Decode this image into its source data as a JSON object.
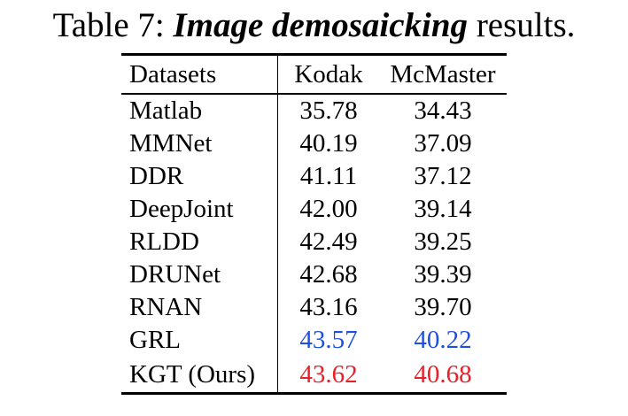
{
  "caption": {
    "prefix": "Table 7: ",
    "emphasis": "Image demosaicking",
    "suffix": " results."
  },
  "table": {
    "headers": [
      "Datasets",
      "Kodak",
      "McMaster"
    ],
    "rows": [
      {
        "method": "Matlab",
        "kodak": "35.78",
        "mcmaster": "34.43"
      },
      {
        "method": "MMNet",
        "kodak": "40.19",
        "mcmaster": "37.09"
      },
      {
        "method": "DDR",
        "kodak": "41.11",
        "mcmaster": "37.12"
      },
      {
        "method": "DeepJoint",
        "kodak": "42.00",
        "mcmaster": "39.14"
      },
      {
        "method": "RLDD",
        "kodak": "42.49",
        "mcmaster": "39.25"
      },
      {
        "method": "DRUNet",
        "kodak": "42.68",
        "mcmaster": "39.39"
      },
      {
        "method": "RNAN",
        "kodak": "43.16",
        "mcmaster": "39.70"
      },
      {
        "method": "GRL",
        "kodak": "43.57",
        "mcmaster": "40.22",
        "highlight": "second"
      },
      {
        "method": "KGT (Ours)",
        "kodak": "43.62",
        "mcmaster": "40.68",
        "highlight": "best"
      }
    ]
  },
  "colors": {
    "best": "#e8202a",
    "second": "#1f4fe0",
    "text": "#000000"
  }
}
